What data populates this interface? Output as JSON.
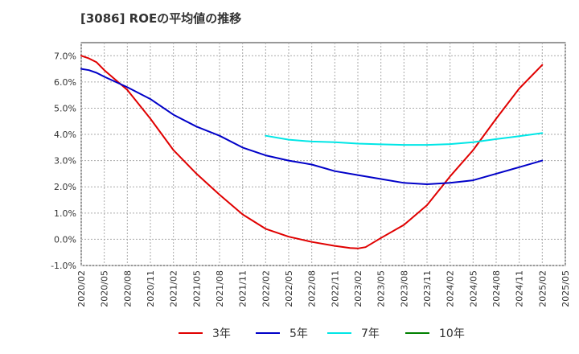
{
  "chart_data": {
    "type": "line",
    "title": "[3086]  ROEの平均値の推移",
    "ylim": [
      -1.0,
      7.5
    ],
    "y_ticks": [
      -1.0,
      0.0,
      1.0,
      2.0,
      3.0,
      4.0,
      5.0,
      6.0,
      7.0
    ],
    "y_tick_labels": [
      "-1.0%",
      "0.0%",
      "1.0%",
      "2.0%",
      "3.0%",
      "4.0%",
      "5.0%",
      "6.0%",
      "7.0%"
    ],
    "x_tick_labels": [
      "2020/02",
      "2020/05",
      "2020/08",
      "2020/11",
      "2021/02",
      "2021/05",
      "2021/08",
      "2021/11",
      "2022/02",
      "2022/05",
      "2022/08",
      "2022/11",
      "2023/02",
      "2023/05",
      "2023/08",
      "2023/11",
      "2024/02",
      "2024/05",
      "2024/08",
      "2024/11",
      "2025/02",
      "2025/05"
    ],
    "grid": true,
    "legend_position": "bottom",
    "series": [
      {
        "name": "3年",
        "color": "#e00000",
        "x": [
          "2020/02",
          "2020/03",
          "2020/04",
          "2020/05",
          "2020/08",
          "2020/11",
          "2021/02",
          "2021/05",
          "2021/08",
          "2021/11",
          "2022/02",
          "2022/05",
          "2022/08",
          "2022/11",
          "2023/01",
          "2023/02",
          "2023/03",
          "2023/05",
          "2023/08",
          "2023/11",
          "2024/02",
          "2024/05",
          "2024/08",
          "2024/11",
          "2025/02"
        ],
        "values": [
          7.0,
          6.9,
          6.75,
          6.45,
          5.7,
          4.6,
          3.4,
          2.5,
          1.7,
          0.95,
          0.4,
          0.1,
          -0.1,
          -0.25,
          -0.33,
          -0.35,
          -0.3,
          0.05,
          0.55,
          1.3,
          2.4,
          3.4,
          4.6,
          5.75,
          6.65
        ]
      },
      {
        "name": "5年",
        "color": "#0000c8",
        "x": [
          "2020/02",
          "2020/03",
          "2020/04",
          "2020/05",
          "2020/08",
          "2020/11",
          "2021/02",
          "2021/05",
          "2021/08",
          "2021/11",
          "2022/02",
          "2022/05",
          "2022/08",
          "2022/11",
          "2023/02",
          "2023/05",
          "2023/08",
          "2023/11",
          "2024/02",
          "2024/05",
          "2024/08",
          "2024/11",
          "2025/02"
        ],
        "values": [
          6.5,
          6.45,
          6.35,
          6.2,
          5.8,
          5.35,
          4.75,
          4.3,
          3.95,
          3.5,
          3.2,
          3.0,
          2.85,
          2.6,
          2.45,
          2.3,
          2.15,
          2.1,
          2.15,
          2.25,
          2.5,
          2.75,
          3.0
        ]
      },
      {
        "name": "7年",
        "color": "#00e6e6",
        "x": [
          "2022/02",
          "2022/05",
          "2022/08",
          "2022/11",
          "2023/02",
          "2023/05",
          "2023/08",
          "2023/11",
          "2024/02",
          "2024/05",
          "2024/08",
          "2024/11",
          "2025/02"
        ],
        "values": [
          3.95,
          3.8,
          3.73,
          3.7,
          3.65,
          3.62,
          3.6,
          3.6,
          3.63,
          3.7,
          3.82,
          3.93,
          4.05
        ]
      },
      {
        "name": "10年",
        "color": "#008000",
        "x": [],
        "values": []
      }
    ]
  }
}
